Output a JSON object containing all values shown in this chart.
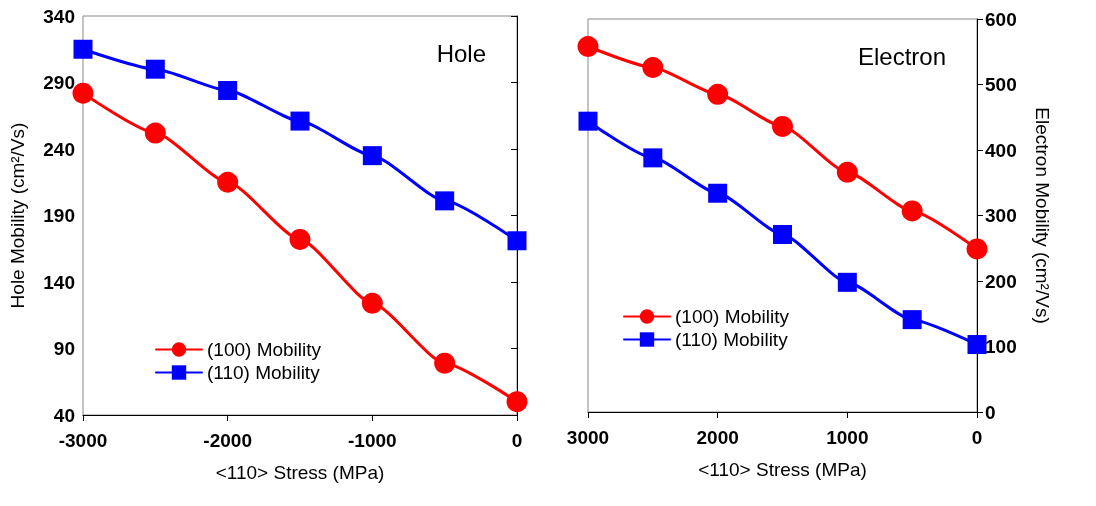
{
  "chart_data": [
    {
      "type": "line",
      "title": "Hole",
      "xlabel": "<110> Stress (MPa)",
      "ylabel": "Hole Mobility (cm²/Vs)",
      "x": [
        -3000,
        -2500,
        -2000,
        -1500,
        -1000,
        -500,
        0
      ],
      "xlim": [
        -3000,
        0
      ],
      "xticks": [
        -3000,
        -2000,
        -1000,
        0
      ],
      "ylim": [
        40,
        340
      ],
      "yticks": [
        40,
        90,
        140,
        190,
        240,
        290,
        340
      ],
      "grid": false,
      "legend": "bottom left",
      "line_style": "solid",
      "series": [
        {
          "name": "(100) Mobility",
          "color": "#ff0000",
          "marker": "circle",
          "values": [
            282,
            252,
            215,
            172,
            124,
            79,
            50
          ]
        },
        {
          "name": "(110) Mobility",
          "color": "#0000ff",
          "marker": "square",
          "values": [
            315,
            300,
            284,
            261,
            235,
            201,
            171
          ]
        }
      ]
    },
    {
      "type": "line",
      "title": "Electron",
      "xlabel": "<110> Stress (MPa)",
      "y2label": "Electron Mobility (cm²/Vs)",
      "x": [
        3000,
        2500,
        2000,
        1500,
        1000,
        500,
        0
      ],
      "xlim": [
        3000,
        0
      ],
      "xticks": [
        3000,
        2000,
        1000,
        0
      ],
      "y2lim": [
        0,
        600
      ],
      "y2ticks": [
        0,
        100,
        200,
        300,
        400,
        500,
        600
      ],
      "grid": false,
      "legend": "bottom left",
      "line_style": "solid",
      "series": [
        {
          "name": "(100) Mobility",
          "color": "#ff0000",
          "marker": "circle",
          "axis": "y2",
          "values": [
            558,
            526,
            485,
            436,
            366,
            307,
            249
          ]
        },
        {
          "name": "(110) Mobility",
          "color": "#0000ff",
          "marker": "square",
          "axis": "y2",
          "values": [
            444,
            388,
            334,
            271,
            198,
            141,
            103
          ]
        }
      ]
    }
  ]
}
